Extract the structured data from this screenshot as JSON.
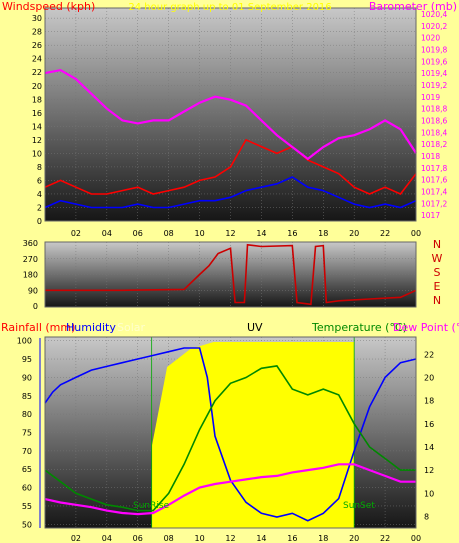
{
  "title": "24 hour graph up to 01 September 2016",
  "colors": {
    "background": "#ffff99",
    "wind": "#ff0000",
    "gust_avg": "#0000ff",
    "barometer": "#ff00ff",
    "direction": "#cc0000",
    "rainfall": "#ff0000",
    "humidity": "#0000ff",
    "solar": "#ffff00",
    "uv": "#000000",
    "temperature": "#008800",
    "dew_point": "#ff00ff",
    "sunrise_sunset": "#00aa00"
  },
  "chart_data": [
    {
      "type": "line",
      "name": "wind-barometer",
      "ylabel_left": "Windspeed (kph)",
      "ylabel_right": "Barometer (mb)",
      "x_ticks": [
        "02",
        "04",
        "06",
        "08",
        "10",
        "12",
        "14",
        "16",
        "18",
        "20",
        "22",
        "00"
      ],
      "y_left_ticks": [
        "0",
        "2",
        "4",
        "6",
        "8",
        "10",
        "12",
        "14",
        "16",
        "18",
        "20",
        "22",
        "24",
        "26",
        "28",
        "30"
      ],
      "y_right_ticks": [
        "1017",
        "1017,2",
        "1017,4",
        "1017,6",
        "1017,8",
        "1018",
        "1018,2",
        "1018,4",
        "1018,6",
        "1018,8",
        "1019",
        "1019,2",
        "1019,4",
        "1019,6",
        "1019,8",
        "1020",
        "1020,2",
        "1020,4"
      ],
      "ylim_left": [
        0,
        31.5
      ],
      "ylim_right": [
        1016.9,
        1020.5
      ],
      "series": [
        {
          "key": "barometer",
          "points": [
            [
              0,
              1019.4
            ],
            [
              1,
              1019.45
            ],
            [
              2,
              1019.3
            ],
            [
              3,
              1019.05
            ],
            [
              4,
              1018.8
            ],
            [
              5,
              1018.6
            ],
            [
              6,
              1018.55
            ],
            [
              7,
              1018.6
            ],
            [
              8,
              1018.6
            ],
            [
              9,
              1018.75
            ],
            [
              10,
              1018.9
            ],
            [
              11,
              1019.0
            ],
            [
              12,
              1018.95
            ],
            [
              13,
              1018.85
            ],
            [
              14,
              1018.6
            ],
            [
              15,
              1018.35
            ],
            [
              16,
              1018.15
            ],
            [
              17,
              1017.95
            ],
            [
              18,
              1018.15
            ],
            [
              19,
              1018.3
            ],
            [
              20,
              1018.35
            ],
            [
              21,
              1018.45
            ],
            [
              22,
              1018.6
            ],
            [
              23,
              1018.45
            ],
            [
              24,
              1018.05
            ]
          ]
        },
        {
          "key": "wind_avg",
          "points": [
            [
              0,
              2
            ],
            [
              1,
              3
            ],
            [
              2,
              2.5
            ],
            [
              3,
              2
            ],
            [
              4,
              2
            ],
            [
              5,
              2
            ],
            [
              6,
              2.5
            ],
            [
              7,
              2
            ],
            [
              8,
              2
            ],
            [
              9,
              2.5
            ],
            [
              10,
              3
            ],
            [
              11,
              3
            ],
            [
              12,
              3.5
            ],
            [
              13,
              4.5
            ],
            [
              14,
              5
            ],
            [
              15,
              5.5
            ],
            [
              16,
              6.5
            ],
            [
              17,
              5
            ],
            [
              18,
              4.5
            ],
            [
              19,
              3.5
            ],
            [
              20,
              2.5
            ],
            [
              21,
              2
            ],
            [
              22,
              2.5
            ],
            [
              23,
              2
            ],
            [
              24,
              3
            ]
          ]
        },
        {
          "key": "wind_gust",
          "points": [
            [
              0,
              5
            ],
            [
              1,
              6
            ],
            [
              2,
              5
            ],
            [
              3,
              4
            ],
            [
              4,
              4
            ],
            [
              5,
              4.5
            ],
            [
              6,
              5
            ],
            [
              7,
              4
            ],
            [
              8,
              4.5
            ],
            [
              9,
              5
            ],
            [
              10,
              6
            ],
            [
              11,
              6.5
            ],
            [
              12,
              8
            ],
            [
              13,
              12
            ],
            [
              14,
              11
            ],
            [
              15,
              10
            ],
            [
              16,
              11
            ],
            [
              17,
              9
            ],
            [
              18,
              8
            ],
            [
              19,
              7
            ],
            [
              20,
              5
            ],
            [
              21,
              4
            ],
            [
              22,
              5
            ],
            [
              23,
              4
            ],
            [
              24,
              7
            ]
          ]
        }
      ]
    },
    {
      "type": "line",
      "name": "wind-direction",
      "ylabel_left_ticks": [
        "0",
        "90",
        "180",
        "270",
        "360"
      ],
      "compass_labels": [
        "N",
        "W",
        "S",
        "E",
        "N"
      ],
      "ylim": [
        0,
        360
      ],
      "series": [
        {
          "key": "direction",
          "points": [
            [
              0,
              90
            ],
            [
              5,
              90
            ],
            [
              9,
              95
            ],
            [
              10,
              180
            ],
            [
              10.6,
              230
            ],
            [
              11.2,
              300
            ],
            [
              12,
              330
            ],
            [
              12.3,
              20
            ],
            [
              12.9,
              20
            ],
            [
              13.1,
              350
            ],
            [
              14,
              340
            ],
            [
              16,
              345
            ],
            [
              16.3,
              20
            ],
            [
              17.2,
              10
            ],
            [
              17.5,
              340
            ],
            [
              18,
              345
            ],
            [
              18.2,
              20
            ],
            [
              19,
              30
            ],
            [
              21,
              40
            ],
            [
              23,
              50
            ],
            [
              24,
              90
            ]
          ]
        }
      ]
    },
    {
      "type": "line",
      "name": "rain-humidity-solar-temp",
      "ylabel_rain": "Rainfall (mm)",
      "ylabel_humidity": "Humidity",
      "ylabel_solar": "Solar",
      "ylabel_uv": "UV",
      "ylabel_temp": "Temperature (°C)",
      "ylabel_dew": "Dew Point (°C)",
      "sunrise_label": "SunRise",
      "sunset_label": "SunSet",
      "y_humidity_ticks": [
        "50",
        "55",
        "60",
        "65",
        "70",
        "75",
        "80",
        "85",
        "90",
        "95",
        "100"
      ],
      "y_temp_ticks": [
        "8",
        "10",
        "12",
        "14",
        "16",
        "18",
        "20",
        "22"
      ],
      "ylim_humidity": [
        49,
        101
      ],
      "ylim_temp": [
        7,
        23.5
      ],
      "sunrise_hour": 6.9,
      "sunset_hour": 20.0,
      "series": [
        {
          "key": "humidity",
          "points": [
            [
              0,
              83
            ],
            [
              0.5,
              86
            ],
            [
              1,
              88
            ],
            [
              2,
              90
            ],
            [
              3,
              92
            ],
            [
              4,
              93
            ],
            [
              5,
              94
            ],
            [
              6,
              95
            ],
            [
              7,
              96
            ],
            [
              8,
              97
            ],
            [
              9,
              98
            ],
            [
              10,
              98
            ],
            [
              10.5,
              90
            ],
            [
              11,
              74
            ],
            [
              12,
              62
            ],
            [
              13,
              56
            ],
            [
              14,
              53
            ],
            [
              15,
              52
            ],
            [
              16,
              53
            ],
            [
              17,
              51
            ],
            [
              18,
              53
            ],
            [
              19,
              57
            ],
            [
              20,
              70
            ],
            [
              21,
              82
            ],
            [
              22,
              90
            ],
            [
              23,
              94
            ],
            [
              24,
              95
            ]
          ]
        },
        {
          "key": "temperature",
          "points": [
            [
              0,
              12
            ],
            [
              1,
              11
            ],
            [
              2,
              10
            ],
            [
              3,
              9.5
            ],
            [
              4,
              9
            ],
            [
              5,
              8.8
            ],
            [
              6,
              8.5
            ],
            [
              7,
              8.5
            ],
            [
              8,
              10
            ],
            [
              9,
              12.5
            ],
            [
              10,
              15.5
            ],
            [
              11,
              18
            ],
            [
              12,
              19.5
            ],
            [
              13,
              20
            ],
            [
              14,
              20.8
            ],
            [
              15,
              21
            ],
            [
              16,
              19
            ],
            [
              17,
              18.5
            ],
            [
              18,
              19
            ],
            [
              19,
              18.5
            ],
            [
              20,
              16
            ],
            [
              21,
              14
            ],
            [
              22,
              13
            ],
            [
              23,
              12
            ],
            [
              24,
              12
            ]
          ]
        },
        {
          "key": "dew_point",
          "points": [
            [
              0,
              9.5
            ],
            [
              1,
              9.2
            ],
            [
              2,
              9
            ],
            [
              3,
              8.8
            ],
            [
              4,
              8.5
            ],
            [
              5,
              8.3
            ],
            [
              6,
              8.2
            ],
            [
              7,
              8.3
            ],
            [
              8,
              9
            ],
            [
              9,
              9.8
            ],
            [
              10,
              10.5
            ],
            [
              11,
              10.8
            ],
            [
              12,
              11
            ],
            [
              13,
              11.2
            ],
            [
              14,
              11.4
            ],
            [
              15,
              11.5
            ],
            [
              16,
              11.8
            ],
            [
              17,
              12
            ],
            [
              18,
              12.2
            ],
            [
              19,
              12.5
            ],
            [
              20,
              12.5
            ],
            [
              21,
              12
            ],
            [
              22,
              11.5
            ],
            [
              23,
              11
            ],
            [
              24,
              11
            ]
          ]
        }
      ]
    }
  ],
  "x_ticks": [
    "02",
    "04",
    "06",
    "08",
    "10",
    "12",
    "14",
    "16",
    "18",
    "20",
    "22",
    "00"
  ]
}
